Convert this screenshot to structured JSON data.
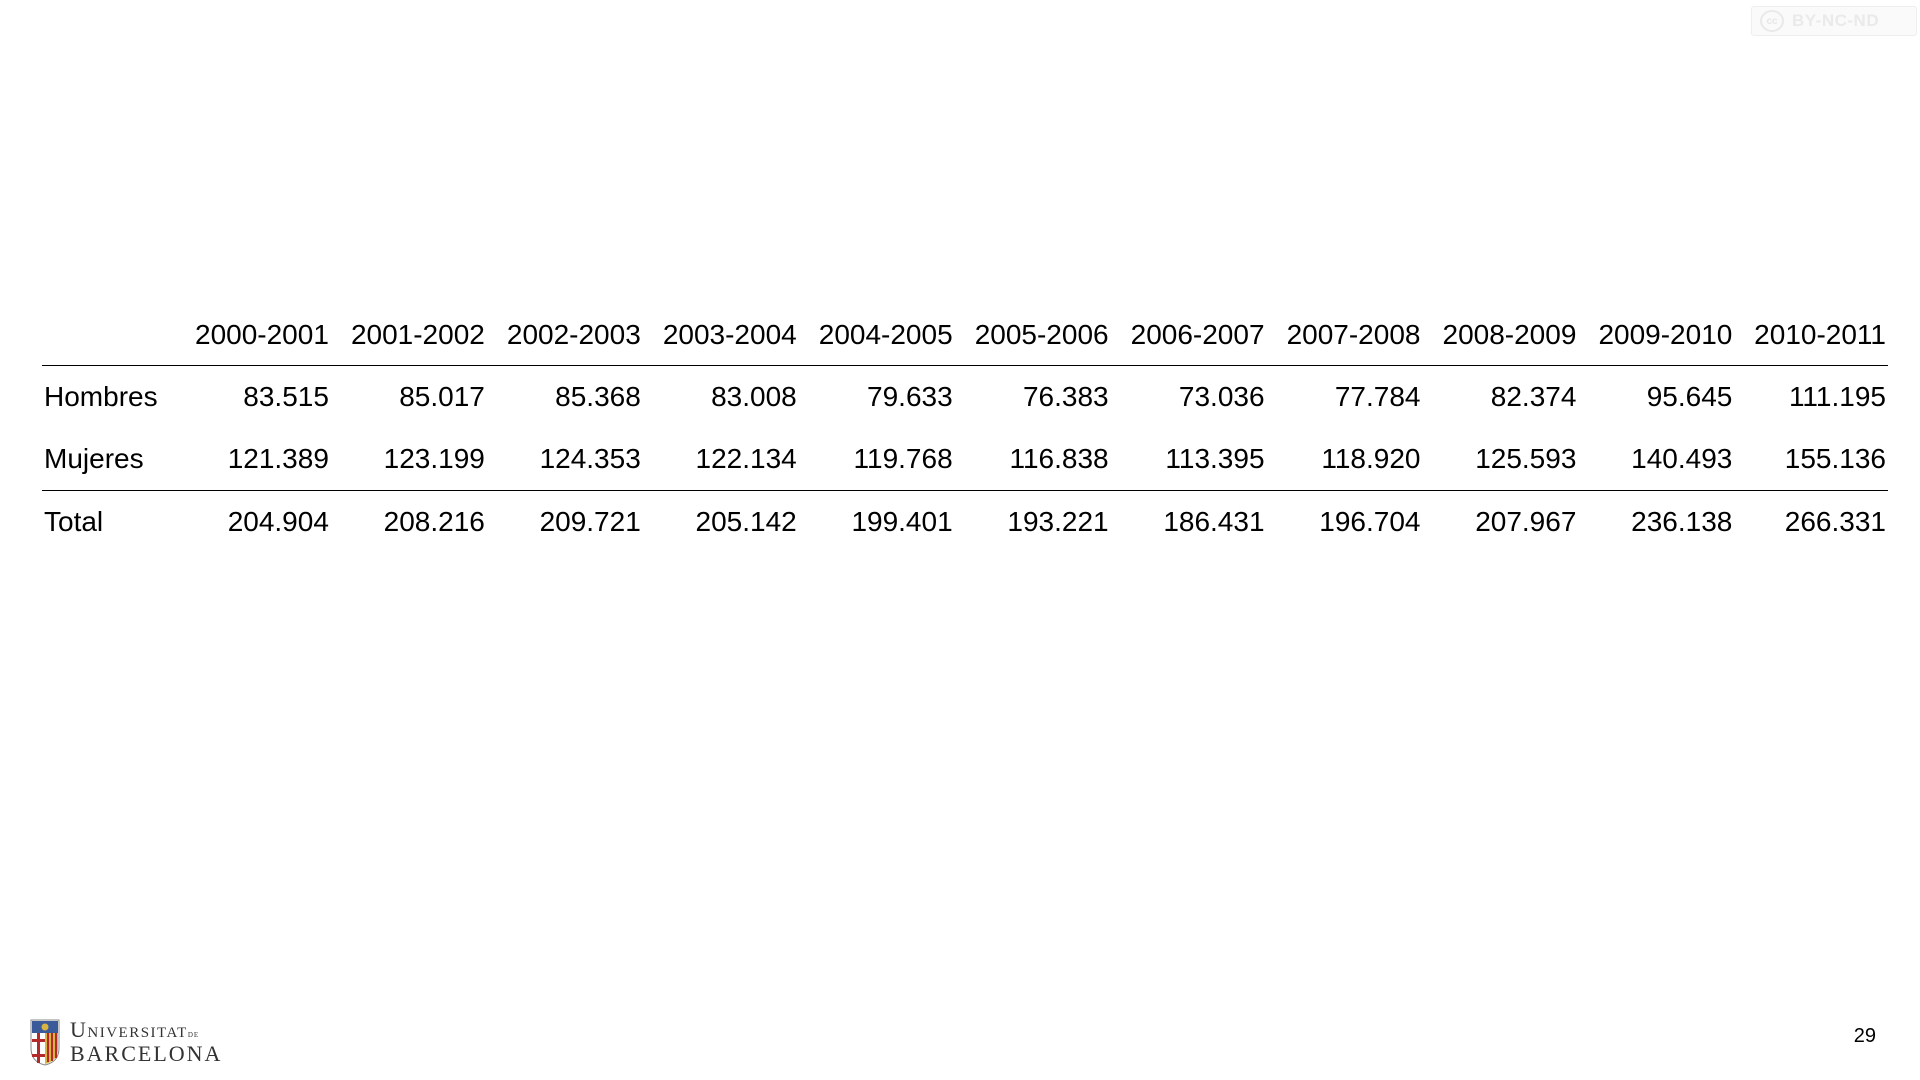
{
  "license_badge": {
    "icon": "cc",
    "text": "BY-NC-ND"
  },
  "table": {
    "columns": [
      "2000-2001",
      "2001-2002",
      "2002-2003",
      "2003-2004",
      "2004-2005",
      "2005-2006",
      "2006-2007",
      "2007-2008",
      "2008-2009",
      "2009-2010",
      "2010-2011"
    ],
    "rows": [
      {
        "label": "Hombres",
        "values": [
          "83.515",
          "85.017",
          "85.368",
          "83.008",
          "79.633",
          "76.383",
          "73.036",
          "77.784",
          "82.374",
          "95.645",
          "111.195"
        ]
      },
      {
        "label": "Mujeres",
        "values": [
          "121.389",
          "123.199",
          "124.353",
          "122.134",
          "119.768",
          "116.838",
          "113.395",
          "118.920",
          "125.593",
          "140.493",
          "155.136"
        ]
      },
      {
        "label": "Total",
        "values": [
          "204.904",
          "208.216",
          "209.721",
          "205.142",
          "199.401",
          "193.221",
          "186.431",
          "196.704",
          "207.967",
          "236.138",
          "266.331"
        ]
      }
    ]
  },
  "footer": {
    "logo_line1": "Universitat",
    "logo_line1_suffix": "de",
    "logo_line2": "BARCELONA",
    "page_number": "29"
  },
  "colors": {
    "shield_blue": "#3b5a9a",
    "shield_red": "#b22a2a",
    "shield_gold": "#d8b440"
  }
}
